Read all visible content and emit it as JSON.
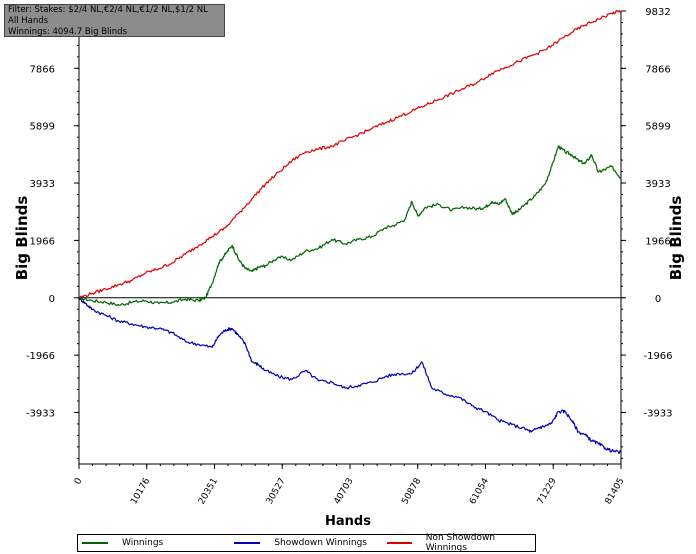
{
  "filter": {
    "line1": "Filter: Stakes: $2/4 NL,€2/4 NL,€1/2 NL,$1/2 NL",
    "line2": "All Hands",
    "line3": "Winnings: 4094.7 Big Blinds"
  },
  "colors": {
    "winnings": "#006400",
    "showdown": "#0000b4",
    "non_showdown": "#e00000",
    "zero_line": "#000000"
  },
  "chart_data": {
    "type": "line",
    "xlabel": "Hands",
    "ylabel": "Big Blinds",
    "xlim": [
      0,
      81405
    ],
    "ylim": [
      -5700,
      9832
    ],
    "x_ticks": [
      0,
      10176,
      20351,
      30527,
      40703,
      50878,
      61054,
      71229,
      81405
    ],
    "x_tick_labels": [
      "0",
      "10176",
      "20351",
      "30527",
      "40703",
      "50878",
      "61054",
      "71229",
      "81405"
    ],
    "y_ticks": [
      -3933,
      -1966,
      0,
      1966,
      3933,
      5899,
      7866,
      9832
    ],
    "y_tick_labels": [
      "-3933",
      "-1966",
      "0",
      "1966",
      "3933",
      "5899",
      "7866",
      "9832"
    ],
    "grid": false,
    "legend_position": "bottom",
    "series": [
      {
        "name": "Winnings",
        "color": "#006400",
        "x": [
          0,
          2000,
          4000,
          6000,
          8000,
          10000,
          12000,
          14000,
          16000,
          18000,
          19000,
          20000,
          21000,
          22000,
          23000,
          24000,
          25000,
          26000,
          27000,
          28000,
          30000,
          32000,
          34000,
          36000,
          38000,
          40000,
          42000,
          44000,
          46000,
          47500,
          49000,
          50000,
          50900,
          52000,
          54000,
          56000,
          58000,
          60000,
          61000,
          62000,
          63000,
          64000,
          65000,
          65800,
          67000,
          68500,
          70000,
          71000,
          72000,
          73000,
          74000,
          75000,
          76000,
          77000,
          78000,
          79000,
          80000,
          81405
        ],
        "y": [
          0,
          -100,
          -150,
          -250,
          -150,
          -100,
          -200,
          -150,
          -50,
          -100,
          0,
          500,
          1200,
          1500,
          1800,
          1300,
          1000,
          900,
          1050,
          1100,
          1400,
          1300,
          1600,
          1700,
          2000,
          1850,
          2000,
          2100,
          2400,
          2500,
          2700,
          3300,
          2800,
          3100,
          3200,
          3000,
          3100,
          3050,
          3100,
          3300,
          3200,
          3400,
          2900,
          2950,
          3200,
          3500,
          3900,
          4500,
          5200,
          5000,
          4900,
          4700,
          4600,
          4900,
          4300,
          4400,
          4500,
          4094
        ]
      },
      {
        "name": "Showdown Winnings",
        "color": "#0000b4",
        "x": [
          0,
          1000,
          2000,
          4000,
          6000,
          8000,
          10000,
          12000,
          14000,
          16000,
          18000,
          20000,
          21000,
          22000,
          23000,
          24000,
          25000,
          26000,
          27000,
          28000,
          30000,
          32000,
          34000,
          36000,
          38000,
          40000,
          42000,
          44000,
          46000,
          48000,
          50000,
          51500,
          53000,
          55000,
          57000,
          59000,
          61000,
          63000,
          65000,
          67000,
          68000,
          69000,
          70000,
          71000,
          72000,
          73000,
          74000,
          75000,
          76000,
          77000,
          78000,
          79000,
          80000,
          81405
        ],
        "y": [
          0,
          -200,
          -400,
          -600,
          -800,
          -900,
          -1000,
          -1050,
          -1200,
          -1500,
          -1600,
          -1700,
          -1300,
          -1100,
          -1050,
          -1300,
          -1600,
          -2200,
          -2300,
          -2500,
          -2700,
          -2800,
          -2500,
          -2850,
          -2900,
          -3100,
          -3000,
          -2900,
          -2700,
          -2600,
          -2600,
          -2200,
          -3100,
          -3300,
          -3400,
          -3700,
          -3900,
          -4200,
          -4350,
          -4500,
          -4600,
          -4450,
          -4400,
          -4300,
          -3900,
          -3900,
          -4200,
          -4600,
          -4700,
          -4900,
          -5000,
          -5150,
          -5250,
          -5300
        ]
      },
      {
        "name": "Non Showdown Winnings",
        "color": "#e00000",
        "x": [
          0,
          2000,
          4000,
          6000,
          8000,
          10000,
          12000,
          14000,
          16000,
          18000,
          20000,
          22000,
          24000,
          26000,
          28000,
          30000,
          32000,
          34000,
          36000,
          38000,
          40000,
          42000,
          44000,
          46000,
          48000,
          50000,
          52000,
          54000,
          56000,
          58000,
          60000,
          62000,
          64000,
          66000,
          68000,
          70000,
          72000,
          74000,
          76000,
          78000,
          80000,
          81405
        ],
        "y": [
          0,
          150,
          300,
          450,
          600,
          850,
          1000,
          1200,
          1500,
          1800,
          2100,
          2400,
          2900,
          3400,
          3900,
          4300,
          4700,
          5000,
          5100,
          5200,
          5400,
          5600,
          5800,
          6000,
          6200,
          6400,
          6600,
          6800,
          7000,
          7200,
          7400,
          7700,
          7900,
          8100,
          8300,
          8500,
          8800,
          9100,
          9350,
          9550,
          9750,
          9832
        ]
      }
    ]
  }
}
